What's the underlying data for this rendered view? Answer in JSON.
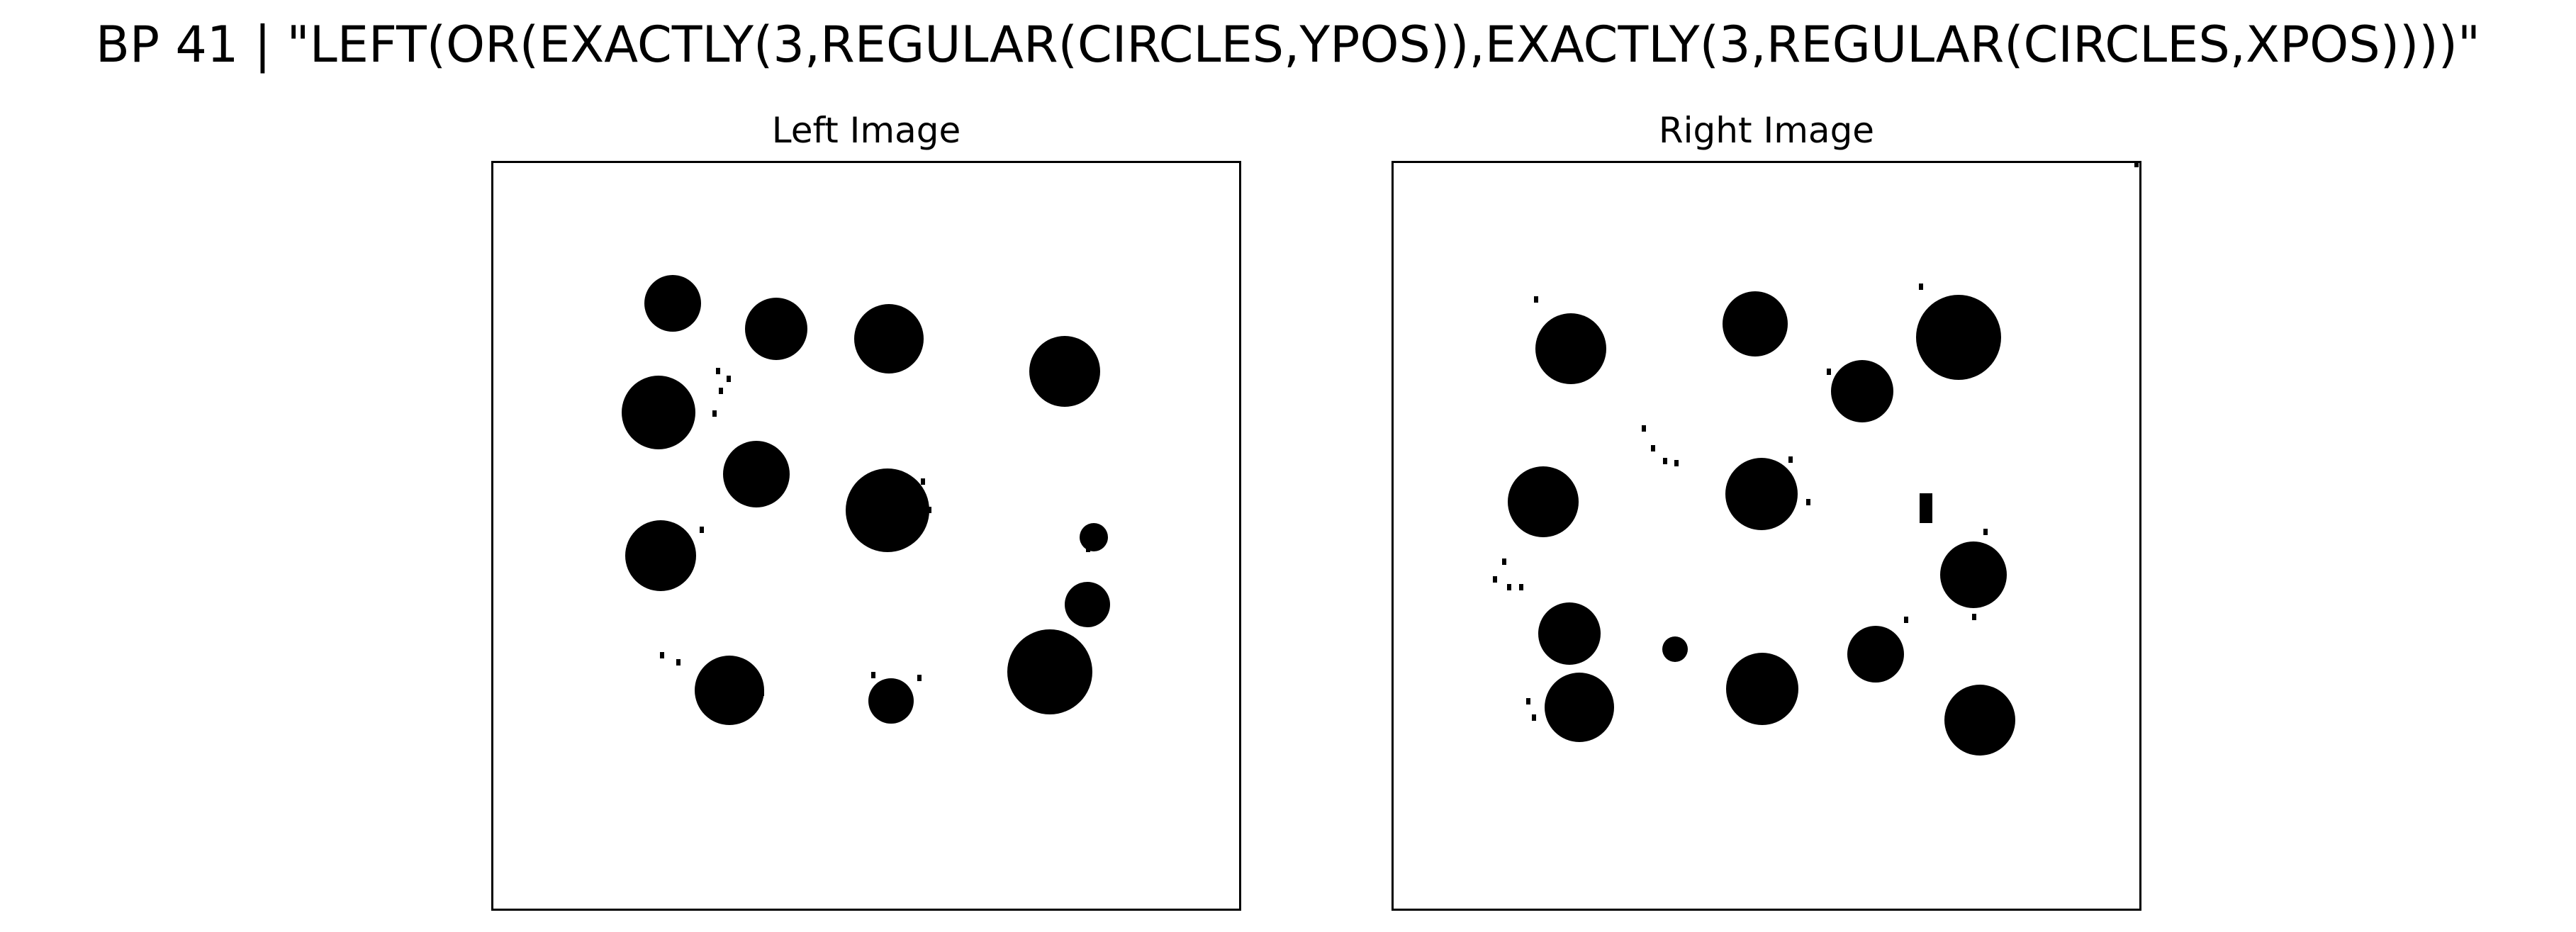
{
  "figure": {
    "title": "BP 41 | \"LEFT(OR(EXACTLY(3,REGULAR(CIRCLES,YPOS)),EXACTLY(3,REGULAR(CIRCLES,XPOS))))\""
  },
  "panels": {
    "left": {
      "title": "Left Image"
    },
    "right": {
      "title": "Right Image"
    }
  },
  "colors": {
    "blob": "#000000",
    "background": "#ffffff",
    "frame": "#000000"
  }
}
